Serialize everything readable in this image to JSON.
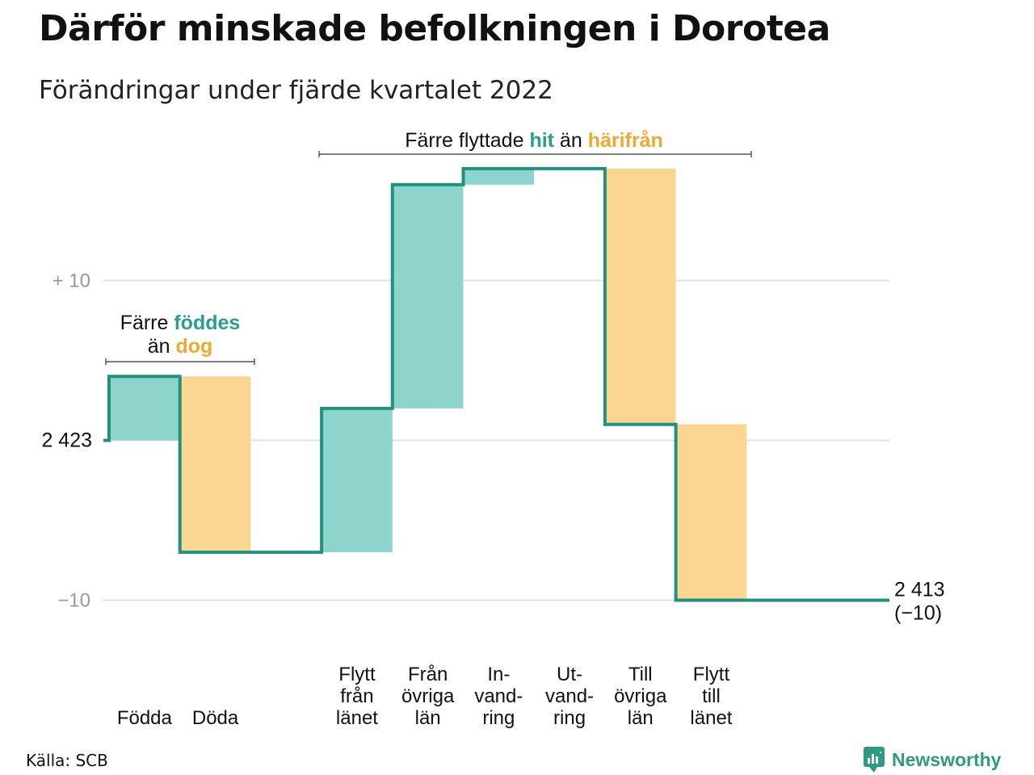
{
  "title": "Därför minskade befolkningen i Dorotea",
  "subtitle": "Förändringar under fjärde kvartalet 2022",
  "source": "Källa: SCB",
  "logo_text": "Newsworthy",
  "colors": {
    "increase": "#8dd5cc",
    "decrease": "#fbd690",
    "line": "#23907f",
    "teal_text": "#2a9d8f",
    "orange_text": "#f0a830",
    "grid": "#e2e2e2",
    "tick_text": "#999999"
  },
  "chart_data": {
    "type": "waterfall",
    "title": "Därför minskade befolkningen i Dorotea",
    "subtitle": "Förändringar under fjärde kvartalet 2022",
    "start_value": 2423,
    "start_label": "2 423",
    "end_value": 2413,
    "end_label": "2 413",
    "end_change_label": "(−10)",
    "ylim": [
      -10,
      10
    ],
    "yticks": [
      {
        "value": 10,
        "label": "+ 10"
      },
      {
        "value": -10,
        "label": "−10"
      }
    ],
    "grid": true,
    "categories": [
      {
        "name": "Födda",
        "lines": [
          "Födda"
        ],
        "value": 4,
        "sign": "increase"
      },
      {
        "name": "Döda",
        "lines": [
          "Döda"
        ],
        "value": -11,
        "sign": "decrease"
      },
      {
        "name": "",
        "lines": [],
        "value": 0,
        "sign": "none"
      },
      {
        "name": "Flytt från länet",
        "lines": [
          "Flytt",
          "från",
          "länet"
        ],
        "value": 9,
        "sign": "increase"
      },
      {
        "name": "Från övriga län",
        "lines": [
          "Från",
          "övriga",
          "län"
        ],
        "value": 14,
        "sign": "increase"
      },
      {
        "name": "In-vand-ring",
        "lines": [
          "In-",
          "vand-",
          "ring"
        ],
        "value": 1,
        "sign": "increase"
      },
      {
        "name": "Ut-vand-ring",
        "lines": [
          "Ut-",
          "vand-",
          "ring"
        ],
        "value": 0,
        "sign": "decrease"
      },
      {
        "name": "Till övriga län",
        "lines": [
          "Till",
          "övriga",
          "län"
        ],
        "value": -16,
        "sign": "decrease"
      },
      {
        "name": "Flytt till länet",
        "lines": [
          "Flytt",
          "till",
          "länet"
        ],
        "value": -11,
        "sign": "decrease"
      }
    ],
    "annotations": [
      {
        "id": "birth",
        "lines": [
          [
            {
              "text": "Färre ",
              "style": "plain"
            },
            {
              "text": "föddes",
              "style": "teal"
            }
          ],
          [
            {
              "text": "än ",
              "style": "plain"
            },
            {
              "text": "dog",
              "style": "orange"
            }
          ]
        ]
      },
      {
        "id": "migration",
        "lines": [
          [
            {
              "text": "Färre flyttade ",
              "style": "plain"
            },
            {
              "text": "hit",
              "style": "teal"
            },
            {
              "text": " än ",
              "style": "plain"
            },
            {
              "text": "härifrån",
              "style": "orange"
            }
          ]
        ]
      }
    ]
  }
}
